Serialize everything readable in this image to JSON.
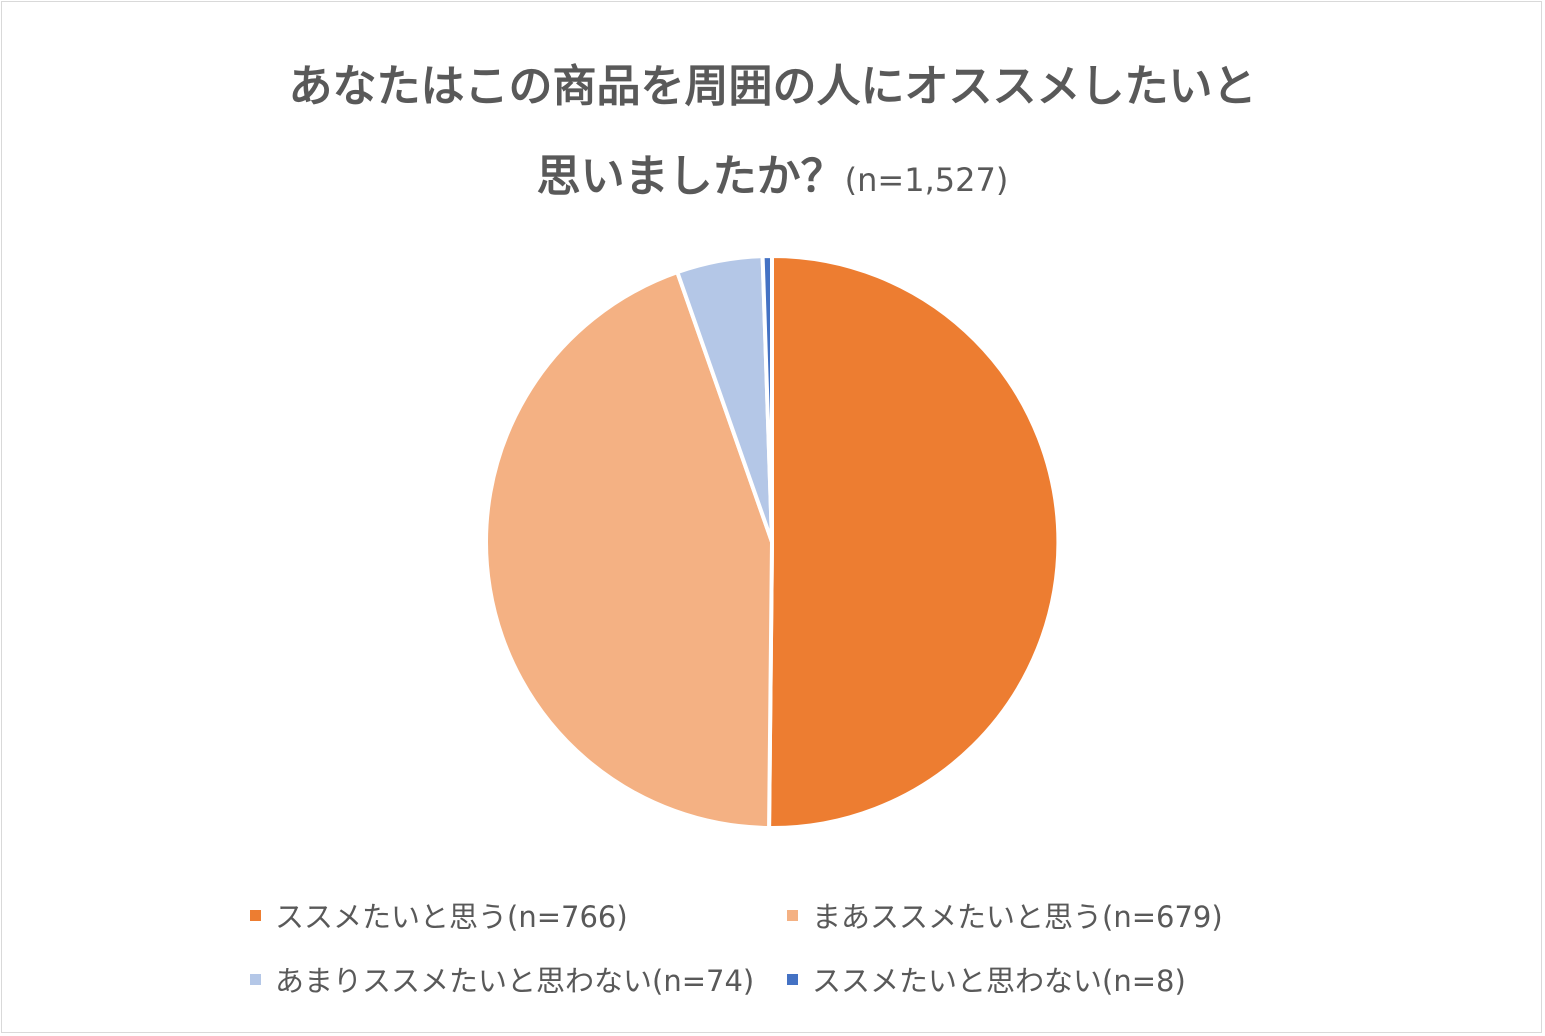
{
  "chart_data": {
    "type": "pie",
    "title_line1": "あなたはこの商品を周囲の人にオススメしたいと",
    "title_line2": "思いましたか？",
    "title_n": "(n=1,527)",
    "slices": [
      {
        "label": "ススメたいと思う(n=766)",
        "value": 766,
        "color": "#ED7D31"
      },
      {
        "label": "まあススメたいと思う(n=679)",
        "value": 679,
        "color": "#F4B183"
      },
      {
        "label": "あまりススメたいと思わない(n=74)",
        "value": 74,
        "color": "#B4C7E7"
      },
      {
        "label": "ススメたいと思わない(n=8)",
        "value": 8,
        "color": "#4472C4"
      }
    ],
    "legend_position": "bottom"
  }
}
